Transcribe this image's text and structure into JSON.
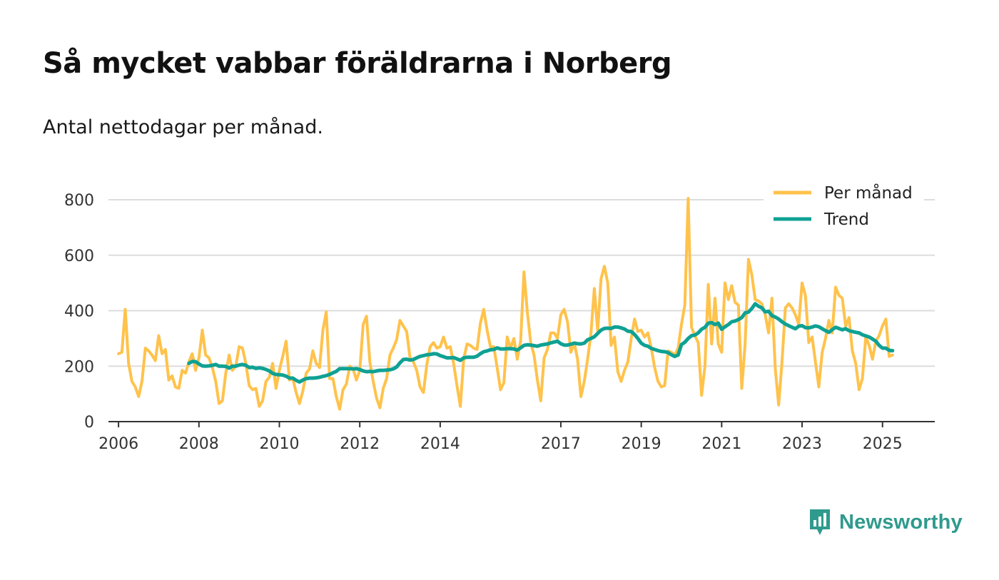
{
  "title": "Så mycket vabbar föräldrarna i Norberg",
  "subtitle": "Antal nettodagar per månad.",
  "brand": "Newsworthy",
  "icons": {
    "brand": "newsworthy-logo-icon"
  },
  "colors": {
    "monthly": "#ffc24b",
    "trend": "#0fa193",
    "grid": "#dddddd",
    "axis": "#333333",
    "brand": "#2f9a8d"
  },
  "chart_data": {
    "type": "line",
    "title": "Så mycket vabbar föräldrarna i Norberg",
    "subtitle": "Antal nettodagar per månad.",
    "xlabel": "",
    "ylabel": "",
    "ylim": [
      0,
      800
    ],
    "y_ticks": [
      0,
      200,
      400,
      600,
      800
    ],
    "x_ticks": [
      2006,
      2008,
      2010,
      2012,
      2014,
      2017,
      2019,
      2021,
      2023,
      2025
    ],
    "x_start": "2006-01",
    "x_range": [
      2005.75,
      2026.3
    ],
    "grid": true,
    "legend_position": "top-right",
    "series": [
      {
        "name": "Per månad",
        "color": "#ffc24b",
        "values": [
          245,
          250,
          405,
          210,
          145,
          125,
          90,
          145,
          265,
          255,
          240,
          220,
          310,
          245,
          260,
          150,
          165,
          125,
          120,
          185,
          175,
          215,
          245,
          185,
          230,
          330,
          240,
          230,
          195,
          145,
          65,
          75,
          175,
          240,
          185,
          200,
          270,
          265,
          210,
          130,
          115,
          120,
          55,
          75,
          145,
          160,
          210,
          120,
          185,
          235,
          290,
          150,
          155,
          105,
          65,
          110,
          175,
          190,
          255,
          210,
          195,
          330,
          395,
          155,
          155,
          90,
          45,
          115,
          135,
          200,
          190,
          150,
          185,
          350,
          380,
          215,
          145,
          85,
          50,
          120,
          155,
          240,
          265,
          295,
          365,
          345,
          325,
          230,
          215,
          185,
          125,
          105,
          205,
          270,
          285,
          265,
          270,
          305,
          265,
          270,
          210,
          130,
          55,
          225,
          280,
          275,
          265,
          260,
          355,
          405,
          330,
          270,
          270,
          195,
          115,
          140,
          305,
          265,
          300,
          225,
          290,
          540,
          395,
          285,
          240,
          150,
          75,
          230,
          260,
          320,
          320,
          300,
          385,
          405,
          360,
          250,
          285,
          225,
          90,
          145,
          225,
          320,
          480,
          325,
          515,
          560,
          500,
          275,
          305,
          180,
          145,
          185,
          215,
          300,
          370,
          325,
          330,
          305,
          320,
          265,
          195,
          145,
          125,
          130,
          255,
          250,
          240,
          265,
          350,
          420,
          805,
          340,
          310,
          285,
          95,
          200,
          495,
          280,
          445,
          280,
          250,
          500,
          440,
          490,
          430,
          420,
          120,
          280,
          585,
          530,
          440,
          435,
          425,
          385,
          320,
          445,
          190,
          60,
          215,
          410,
          425,
          410,
          385,
          350,
          500,
          455,
          285,
          305,
          215,
          125,
          250,
          300,
          365,
          320,
          485,
          455,
          445,
          345,
          375,
          255,
          210,
          115,
          155,
          305,
          275,
          225,
          290,
          310,
          345,
          370,
          235,
          240
        ],
        "aliases": []
      },
      {
        "name": "Trend",
        "color": "#0fa193",
        "values": [
          210,
          217,
          216,
          208,
          201,
          200,
          201,
          203,
          206,
          200,
          200,
          199,
          193,
          200,
          200,
          204,
          206,
          203,
          195,
          196,
          192,
          194,
          192,
          188,
          183,
          174,
          170,
          169,
          168,
          164,
          157,
          157,
          149,
          143,
          150,
          155,
          157,
          157,
          158,
          160,
          163,
          166,
          170,
          176,
          181,
          191,
          191,
          191,
          191,
          190,
          191,
          188,
          183,
          180,
          181,
          180,
          183,
          185,
          185,
          186,
          187,
          190,
          197,
          212,
          224,
          225,
          222,
          224,
          230,
          235,
          238,
          241,
          242,
          245,
          244,
          238,
          234,
          230,
          230,
          231,
          226,
          221,
          230,
          232,
          232,
          232,
          236,
          245,
          252,
          255,
          259,
          260,
          266,
          262,
          262,
          263,
          263,
          262,
          258,
          266,
          275,
          277,
          276,
          274,
          272,
          276,
          278,
          280,
          284,
          287,
          290,
          281,
          276,
          276,
          279,
          283,
          281,
          280,
          283,
          295,
          300,
          306,
          318,
          330,
          336,
          337,
          336,
          341,
          341,
          338,
          334,
          326,
          325,
          314,
          300,
          283,
          275,
          272,
          264,
          260,
          256,
          253,
          252,
          249,
          241,
          235,
          240,
          278,
          286,
          300,
          310,
          312,
          320,
          333,
          340,
          355,
          357,
          350,
          355,
          333,
          342,
          350,
          360,
          363,
          368,
          375,
          392,
          395,
          408,
          425,
          416,
          410,
          396,
          398,
          382,
          377,
          370,
          360,
          352,
          346,
          340,
          335,
          344,
          346,
          339,
          338,
          341,
          345,
          342,
          335,
          328,
          322,
          332,
          340,
          336,
          331,
          335,
          328,
          325,
          322,
          320,
          313,
          309,
          305,
          298,
          290,
          275,
          265,
          265,
          257,
          256
        ]
      }
    ]
  }
}
